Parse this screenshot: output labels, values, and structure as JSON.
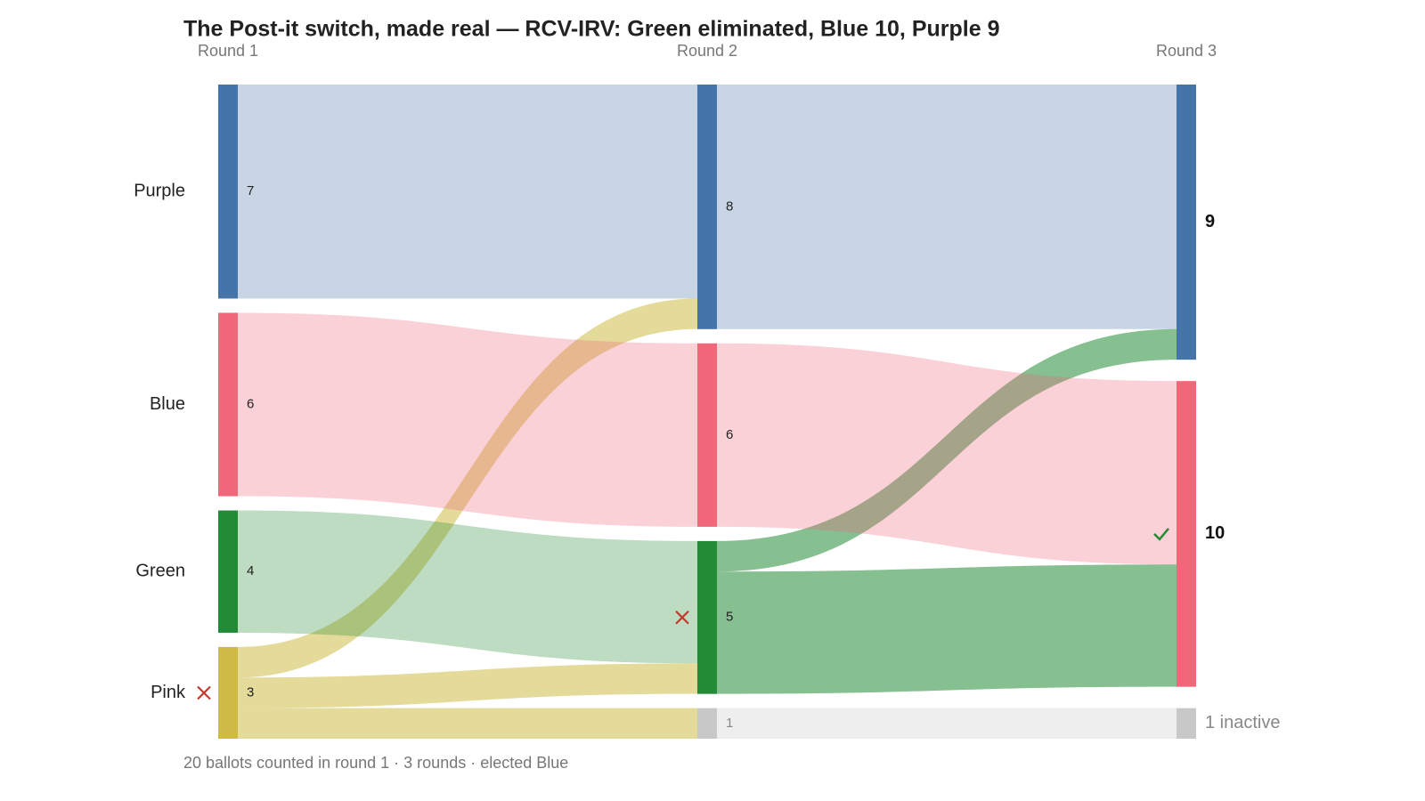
{
  "chart_data": {
    "type": "sankey",
    "title": "The Post-it switch, made real — RCV-IRV: Green eliminated, Blue 10, Purple 9",
    "footnote": "20 ballots counted in round 1 · 3 rounds · elected Blue",
    "columns": [
      "Round 1",
      "Round 2",
      "Round 3"
    ],
    "nodes": [
      {
        "name": "Purple",
        "column": 0,
        "value": 7,
        "color": "#4575a8"
      },
      {
        "name": "Blue",
        "column": 0,
        "value": 6,
        "color": "#f0677a"
      },
      {
        "name": "Green",
        "column": 0,
        "value": 4,
        "color": "#238a35"
      },
      {
        "name": "Pink",
        "column": 0,
        "value": 3,
        "color": "#cdbb45",
        "eliminated": true
      },
      {
        "column": 1,
        "value": 8,
        "color": "#4575a8"
      },
      {
        "column": 1,
        "value": 6,
        "color": "#f0677a"
      },
      {
        "column": 1,
        "value": 5,
        "color": "#238a35",
        "eliminated": true
      },
      {
        "column": 1,
        "value": 1,
        "color": "#c8c8c8",
        "inactive": true
      },
      {
        "column": 2,
        "value": 9,
        "color": "#4575a8"
      },
      {
        "column": 2,
        "value": 10,
        "color": "#f0677a",
        "elected": true
      },
      {
        "column": 2,
        "value": 1,
        "color": "#c8c8c8",
        "inactive": true,
        "label": "1 inactive"
      }
    ],
    "links": [
      {
        "source": 0,
        "target": 4,
        "value": 7
      },
      {
        "source": 3,
        "target": 4,
        "value": 1
      },
      {
        "source": 1,
        "target": 5,
        "value": 6
      },
      {
        "source": 2,
        "target": 6,
        "value": 4
      },
      {
        "source": 3,
        "target": 6,
        "value": 1
      },
      {
        "source": 3,
        "target": 7,
        "value": 1
      },
      {
        "source": 4,
        "target": 8,
        "value": 8
      },
      {
        "source": 6,
        "target": 8,
        "value": 1
      },
      {
        "source": 5,
        "target": 9,
        "value": 6
      },
      {
        "source": 6,
        "target": 9,
        "value": 4
      },
      {
        "source": 7,
        "target": 10,
        "value": 1
      }
    ]
  }
}
